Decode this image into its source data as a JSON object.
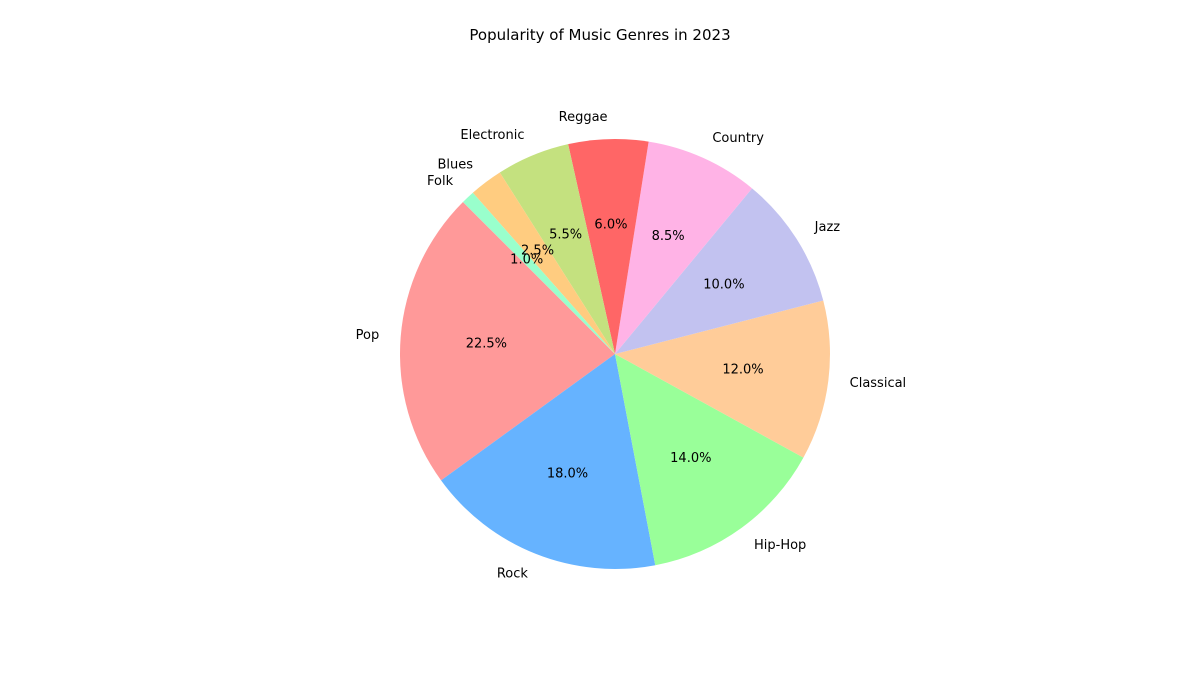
{
  "chart_data": {
    "type": "pie",
    "title": "Popularity of Music Genres in 2023",
    "start_angle_deg": 135,
    "direction": "counterclockwise",
    "slices": [
      {
        "label": "Pop",
        "value": 22.5,
        "pct_label": "22.5%",
        "color": "#ff9999"
      },
      {
        "label": "Rock",
        "value": 18.0,
        "pct_label": "18.0%",
        "color": "#66b3ff"
      },
      {
        "label": "Hip-Hop",
        "value": 14.0,
        "pct_label": "14.0%",
        "color": "#99ff99"
      },
      {
        "label": "Classical",
        "value": 12.0,
        "pct_label": "12.0%",
        "color": "#ffcc99"
      },
      {
        "label": "Jazz",
        "value": 10.0,
        "pct_label": "10.0%",
        "color": "#c2c2f0"
      },
      {
        "label": "Country",
        "value": 8.5,
        "pct_label": "8.5%",
        "color": "#ffb3e6"
      },
      {
        "label": "Reggae",
        "value": 6.0,
        "pct_label": "6.0%",
        "color": "#ff6666"
      },
      {
        "label": "Electronic",
        "value": 5.5,
        "pct_label": "5.5%",
        "color": "#c4e17f"
      },
      {
        "label": "Blues",
        "value": 2.5,
        "pct_label": "2.5%",
        "color": "#ffcc80"
      },
      {
        "label": "Folk",
        "value": 1.0,
        "pct_label": "1.0%",
        "color": "#99ffcc"
      }
    ]
  }
}
